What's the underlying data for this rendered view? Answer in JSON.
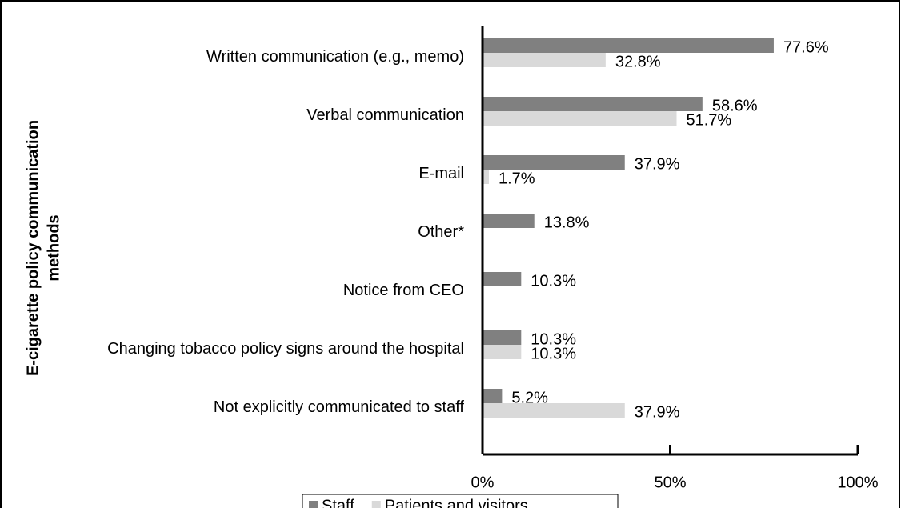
{
  "chart_data": {
    "type": "bar",
    "orientation": "horizontal",
    "y_label": [
      "E-cigarette policy communication",
      "methods"
    ],
    "categories": [
      "Written communication (e.g., memo)",
      "Verbal communication",
      "E-mail",
      "Other*",
      "Notice from CEO",
      "Changing tobacco policy signs around the hospital",
      "Not explicitly communicated to staff"
    ],
    "series": [
      {
        "name": "Staff",
        "color": "#808080",
        "values": [
          77.6,
          58.6,
          37.9,
          13.8,
          10.3,
          10.3,
          5.2
        ],
        "value_labels": [
          "77.6%",
          "58.6%",
          "37.9%",
          "13.8%",
          "10.3%",
          "10.3%",
          "5.2%"
        ]
      },
      {
        "name": "Patients and visitors",
        "color": "#d9d9d9",
        "values": [
          32.8,
          51.7,
          1.7,
          null,
          null,
          10.3,
          37.9
        ],
        "value_labels": [
          "32.8%",
          "51.7%",
          "1.7%",
          null,
          null,
          "10.3%",
          "37.9%"
        ]
      }
    ],
    "xlim": [
      0,
      100
    ],
    "xticks": [
      {
        "value": 0,
        "label": "0%"
      },
      {
        "value": 50,
        "label": "50%"
      },
      {
        "value": 100,
        "label": "100%"
      }
    ],
    "legend": "bottom"
  }
}
